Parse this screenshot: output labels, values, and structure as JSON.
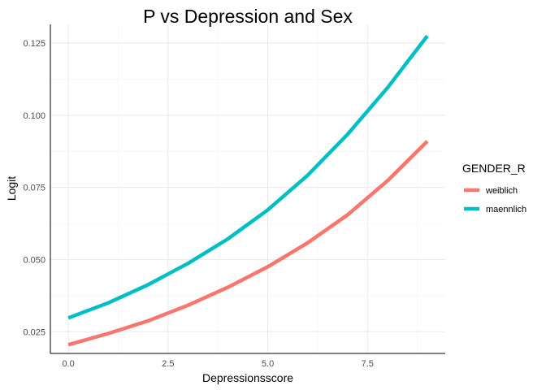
{
  "chart_data": {
    "type": "line",
    "title": "P vs Depression and Sex",
    "xlabel": "Depressionsscore",
    "ylabel": "Logit",
    "xlim": [
      -0.45,
      9.45
    ],
    "ylim": [
      0.0175,
      0.1315
    ],
    "x_ticks": [
      0.0,
      2.5,
      5.0,
      7.5
    ],
    "x_tick_labels": [
      "0.0",
      "2.5",
      "5.0",
      "7.5"
    ],
    "y_ticks": [
      0.025,
      0.05,
      0.075,
      0.1,
      0.125
    ],
    "y_tick_labels": [
      "0.025",
      "0.050",
      "0.075",
      "0.100",
      "0.125"
    ],
    "grid": true,
    "legend": {
      "title": "GENDER_R",
      "placement": "right"
    },
    "x": [
      0,
      1,
      2,
      3,
      4,
      5,
      6,
      7,
      8,
      9
    ],
    "series": [
      {
        "name": "weiblich",
        "color": "#F8766D",
        "values": [
          0.0205,
          0.0244,
          0.0288,
          0.0342,
          0.0404,
          0.0475,
          0.0558,
          0.0655,
          0.0773,
          0.091
        ]
      },
      {
        "name": "maennlich",
        "color": "#00BFC4",
        "values": [
          0.0298,
          0.035,
          0.0413,
          0.0487,
          0.0572,
          0.0672,
          0.0792,
          0.0934,
          0.1095,
          0.1275
        ]
      }
    ]
  }
}
